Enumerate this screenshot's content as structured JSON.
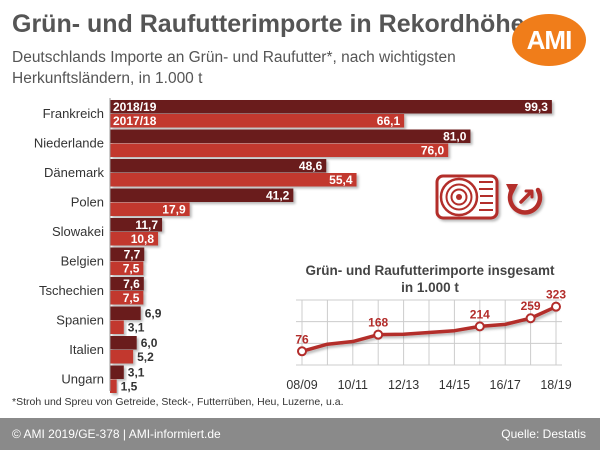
{
  "header": {
    "title": "Grün- und Raufutterimporte in Rekordhöhe",
    "subtitle": "Deutschlands Importe an Grün- und Raufutter*, nach wichtigsten Herkunftsländern, in 1.000 t",
    "logo_text": "AMI"
  },
  "chart_data": [
    {
      "type": "bar",
      "orientation": "horizontal",
      "categories": [
        "Frankreich",
        "Niederlande",
        "Dänemark",
        "Polen",
        "Slowakei",
        "Belgien",
        "Tschechien",
        "Spanien",
        "Italien",
        "Ungarn"
      ],
      "series": [
        {
          "name": "2018/19",
          "values": [
            99.3,
            81.0,
            48.6,
            41.2,
            11.7,
            7.7,
            7.6,
            6.9,
            6.0,
            3.1
          ],
          "labels": [
            "99,3",
            "81,0",
            "48,6",
            "41,2",
            "11,7",
            "7,7",
            "7,6",
            "6,9",
            "6,0",
            "3,1"
          ]
        },
        {
          "name": "2017/18",
          "values": [
            66.1,
            76.0,
            55.4,
            17.9,
            10.8,
            7.5,
            7.5,
            3.1,
            5.2,
            1.5
          ],
          "labels": [
            "66,1",
            "76,0",
            "55,4",
            "17,9",
            "10,8",
            "7,5",
            "7,5",
            "3,1",
            "5,2",
            "1,5"
          ]
        }
      ],
      "xlim": [
        0,
        100
      ],
      "legend_placement": "inside-first-bar",
      "grid": false
    },
    {
      "type": "line",
      "title": "Grün- und Raufutterimporte insgesamt, in 1.000 t",
      "x": [
        "08/09",
        "09/10",
        "10/11",
        "11/12",
        "12/13",
        "13/14",
        "14/15",
        "15/16",
        "16/17",
        "17/18",
        "18/19"
      ],
      "series": [
        {
          "values": [
            76,
            115,
            130,
            168,
            170,
            180,
            190,
            214,
            225,
            259,
            323
          ]
        }
      ],
      "point_labels": [
        {
          "index": 0,
          "text": "76"
        },
        {
          "index": 3,
          "text": "168"
        },
        {
          "index": 7,
          "text": "214"
        },
        {
          "index": 9,
          "text": "259"
        },
        {
          "index": 10,
          "text": "323"
        }
      ],
      "tick_labels": [
        "08/09",
        "10/11",
        "12/13",
        "14/15",
        "16/17",
        "18/19"
      ],
      "ylim": [
        0,
        350
      ],
      "grid": true
    }
  ],
  "colors": {
    "series_2018_19": "#6b1e1e",
    "series_2017_18": "#c2382e",
    "line": "#b32d2b",
    "grid": "#cccccc",
    "footer_bg": "#8a8a8a",
    "logo": "#f07d1a"
  },
  "icons": [
    "hay-bale-icon",
    "recycle-arrow-icon"
  ],
  "footnote": "*Stroh und Spreu von Getreide, Steck-, Futterrüben, Heu, Luzerne, u.a.",
  "footer": {
    "left": "© AMI 2019/GE-378 | AMI-informiert.de",
    "right": "Quelle: Destatis"
  }
}
